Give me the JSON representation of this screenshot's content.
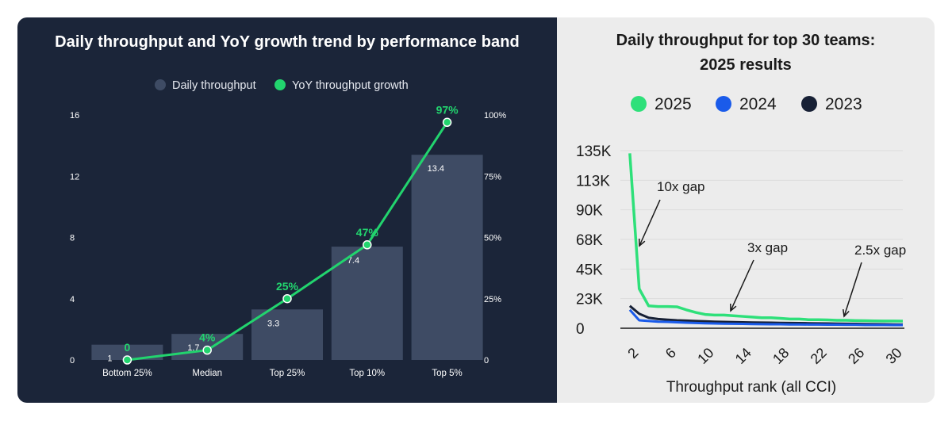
{
  "chart_data": [
    {
      "type": "bar",
      "title": "Daily throughput and YoY growth trend by performance band",
      "categories": [
        "Bottom 25%",
        "Median",
        "Top 25%",
        "Top 10%",
        "Top 5%"
      ],
      "legend": {
        "position": "top",
        "items": [
          "Daily throughput",
          "YoY throughput growth"
        ]
      },
      "series": [
        {
          "name": "Daily throughput",
          "kind": "bar",
          "axis": "left",
          "values": [
            1,
            1.7,
            3.3,
            7.4,
            13.4
          ],
          "labels": [
            "1",
            "1.7",
            "3.3",
            "7.4",
            "13.4"
          ]
        },
        {
          "name": "YoY throughput growth",
          "kind": "line",
          "axis": "right",
          "values": [
            0,
            4,
            25,
            47,
            97
          ],
          "labels": [
            "0",
            "4%",
            "25%",
            "47%",
            "97%"
          ]
        }
      ],
      "y_left": {
        "ylim": [
          0,
          16
        ],
        "ticks": [
          "0",
          "4",
          "8",
          "12",
          "16"
        ]
      },
      "y_right": {
        "ylim": [
          0,
          100
        ],
        "ticks": [
          "0",
          "25%",
          "50%",
          "75%",
          "100%"
        ]
      },
      "colors": {
        "background": "#1b2539",
        "bar": "#3e4b64",
        "line": "#22d46e",
        "text": "#ffffff"
      }
    },
    {
      "type": "line",
      "title": "Daily throughput for top 30 teams:",
      "subtitle": "2025 results",
      "xlabel": "Throughput rank (all CCI)",
      "ylabel": "",
      "xlim": [
        0,
        30
      ],
      "ylim": [
        0,
        135000
      ],
      "x_ticks": [
        "2",
        "6",
        "10",
        "14",
        "18",
        "22",
        "26",
        "30"
      ],
      "y_ticks": [
        "0",
        "23K",
        "45K",
        "68K",
        "90K",
        "113K",
        "135K"
      ],
      "legend": {
        "position": "top",
        "items": [
          "2025",
          "2024",
          "2023"
        ]
      },
      "x": [
        1,
        2,
        3,
        4,
        5,
        6,
        7,
        8,
        9,
        10,
        11,
        12,
        13,
        14,
        15,
        16,
        17,
        18,
        19,
        20,
        21,
        22,
        23,
        24,
        25,
        26,
        27,
        28,
        29,
        30
      ],
      "series": [
        {
          "name": "2025",
          "color": "#2ee07a",
          "values": [
            133000,
            30000,
            17000,
            16500,
            16500,
            16300,
            14000,
            12000,
            10500,
            10000,
            10000,
            9500,
            9000,
            8500,
            8000,
            8000,
            7500,
            7000,
            7000,
            6500,
            6500,
            6300,
            6000,
            6000,
            5800,
            5700,
            5600,
            5500,
            5500,
            5400
          ]
        },
        {
          "name": "2024",
          "color": "#1a5bea",
          "values": [
            14000,
            6000,
            5500,
            5000,
            4800,
            4500,
            4200,
            4000,
            3800,
            3600,
            3500,
            3400,
            3300,
            3200,
            3100,
            3000,
            3000,
            2900,
            2900,
            2800,
            2800,
            2700,
            2700,
            2600,
            2600,
            2500,
            2500,
            2500,
            2400,
            2400
          ]
        },
        {
          "name": "2023",
          "color": "#172035",
          "values": [
            17000,
            11000,
            8000,
            7000,
            6500,
            6000,
            5800,
            5500,
            5300,
            5000,
            4800,
            4700,
            4500,
            4400,
            4300,
            4200,
            4100,
            4000,
            3900,
            3800,
            3700,
            3600,
            3500,
            3400,
            3300,
            3200,
            3100,
            3000,
            2900,
            2800
          ]
        }
      ],
      "annotations": [
        {
          "text": "10x gap",
          "x": 2,
          "y": 105000
        },
        {
          "text": "3x gap",
          "x": 13.5,
          "y": 13000
        },
        {
          "text": "2.5x gap",
          "x": 25,
          "y": 6000
        }
      ]
    }
  ]
}
